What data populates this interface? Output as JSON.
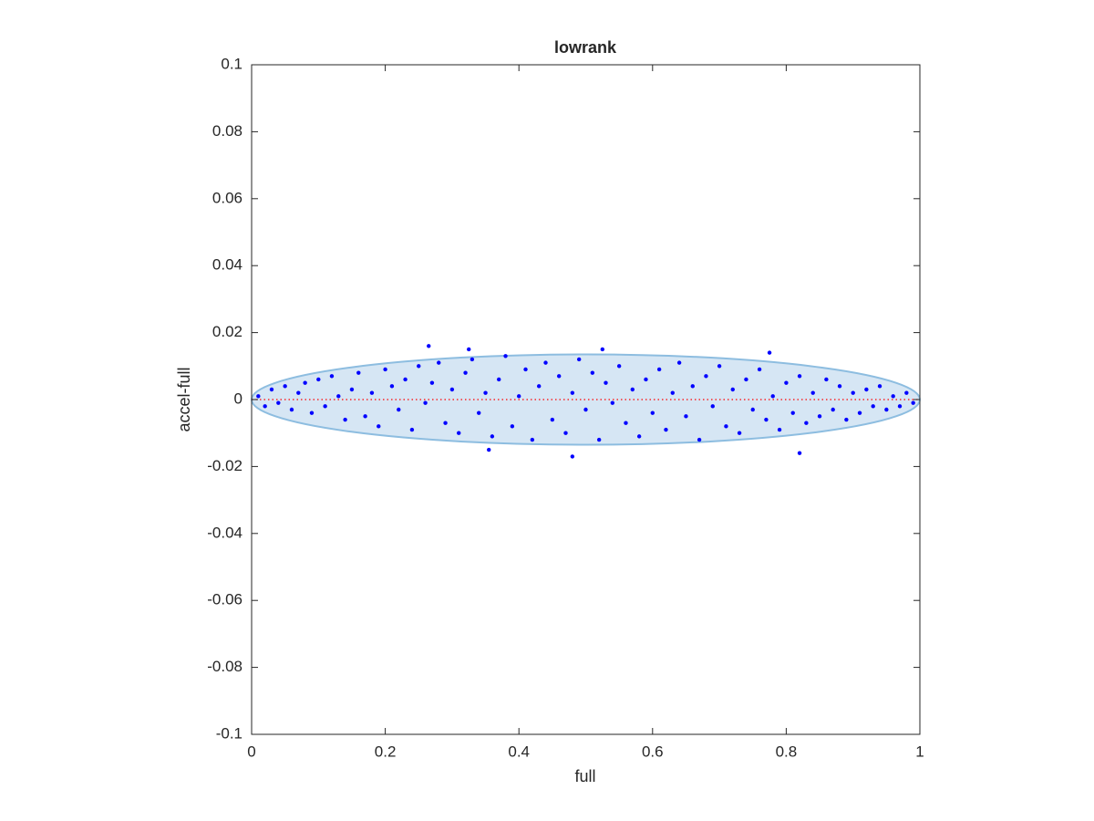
{
  "chart_data": {
    "type": "scatter",
    "title": "lowrank",
    "x_label": "full",
    "y_label": "accel-full",
    "x": [
      0.01,
      0.02,
      0.03,
      0.04,
      0.05,
      0.06,
      0.07,
      0.08,
      0.09,
      0.1,
      0.11,
      0.12,
      0.13,
      0.14,
      0.15,
      0.16,
      0.17,
      0.18,
      0.19,
      0.2,
      0.21,
      0.22,
      0.23,
      0.24,
      0.25,
      0.26,
      0.27,
      0.28,
      0.29,
      0.3,
      0.31,
      0.32,
      0.33,
      0.34,
      0.35,
      0.36,
      0.37,
      0.38,
      0.39,
      0.4,
      0.41,
      0.42,
      0.43,
      0.44,
      0.45,
      0.46,
      0.47,
      0.48,
      0.49,
      0.5,
      0.51,
      0.52,
      0.53,
      0.54,
      0.55,
      0.56,
      0.57,
      0.58,
      0.59,
      0.6,
      0.61,
      0.62,
      0.63,
      0.64,
      0.65,
      0.66,
      0.67,
      0.68,
      0.69,
      0.7,
      0.71,
      0.72,
      0.73,
      0.74,
      0.75,
      0.76,
      0.77,
      0.78,
      0.79,
      0.8,
      0.81,
      0.82,
      0.83,
      0.84,
      0.85,
      0.86,
      0.87,
      0.88,
      0.89,
      0.9,
      0.91,
      0.92,
      0.93,
      0.94,
      0.95,
      0.96,
      0.97,
      0.98,
      0.99,
      0.265,
      0.325,
      0.525,
      0.775,
      0.48,
      0.355,
      0.82
    ],
    "values": [
      0.001,
      -0.002,
      0.003,
      -0.001,
      0.004,
      -0.003,
      0.002,
      0.005,
      -0.004,
      0.006,
      -0.002,
      0.007,
      0.001,
      -0.006,
      0.003,
      0.008,
      -0.005,
      0.002,
      -0.008,
      0.009,
      0.004,
      -0.003,
      0.006,
      -0.009,
      0.01,
      -0.001,
      0.005,
      0.011,
      -0.007,
      0.003,
      -0.01,
      0.008,
      0.012,
      -0.004,
      0.002,
      -0.011,
      0.006,
      0.013,
      -0.008,
      0.001,
      0.009,
      -0.012,
      0.004,
      0.011,
      -0.006,
      0.007,
      -0.01,
      0.002,
      0.012,
      -0.003,
      0.008,
      -0.012,
      0.005,
      -0.001,
      0.01,
      -0.007,
      0.003,
      -0.011,
      0.006,
      -0.004,
      0.009,
      -0.009,
      0.002,
      0.011,
      -0.005,
      0.004,
      -0.012,
      0.007,
      -0.002,
      0.01,
      -0.008,
      0.003,
      -0.01,
      0.006,
      -0.003,
      0.009,
      -0.006,
      0.001,
      -0.009,
      0.005,
      -0.004,
      0.007,
      -0.007,
      0.002,
      -0.005,
      0.006,
      -0.003,
      0.004,
      -0.006,
      0.002,
      -0.004,
      0.003,
      -0.002,
      0.004,
      -0.003,
      0.001,
      -0.002,
      0.002,
      -0.001,
      0.016,
      0.015,
      0.015,
      0.014,
      -0.017,
      -0.015,
      -0.016
    ],
    "color": "#0000ff",
    "ellipse": {
      "cx": 0.5,
      "cy": 0,
      "rx": 0.5,
      "ry": 0.0135,
      "color": "#d6e6f4",
      "edge_color": "#8dbde0"
    },
    "reference_line": {
      "y": 0,
      "color": "#ff0000"
    },
    "xlim": [
      0,
      1
    ],
    "xticks": [
      0,
      0.2,
      0.4,
      0.6,
      0.8,
      1
    ],
    "ylim": [
      -0.1,
      0.1
    ],
    "yticks": [
      -0.1,
      -0.08,
      -0.06,
      -0.04,
      -0.02,
      0,
      0.02,
      0.04,
      0.06,
      0.08,
      0.1
    ]
  }
}
